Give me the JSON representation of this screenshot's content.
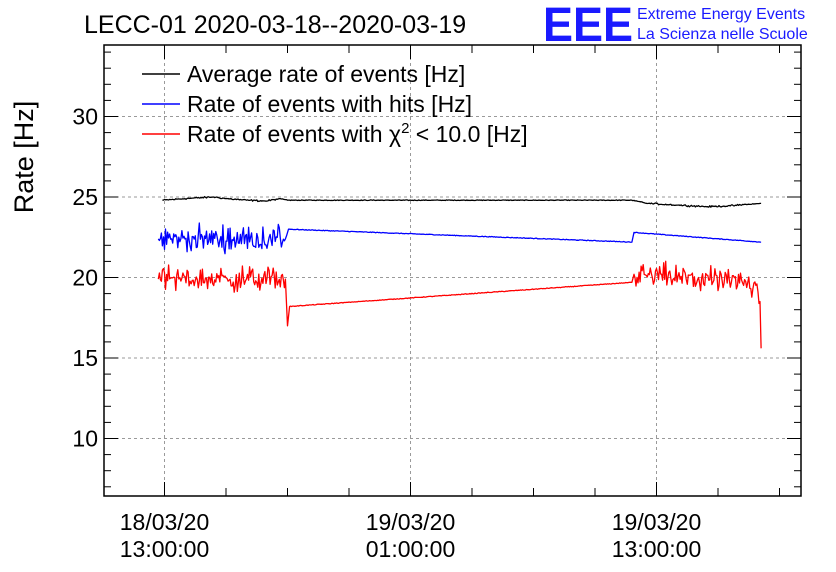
{
  "chart_data": {
    "type": "line",
    "title": "LECC-01 2020-03-18--2020-03-19",
    "ylabel": "Rate [Hz]",
    "xlabel": "",
    "ylim": [
      6.5,
      34.5
    ],
    "y_ticks": [
      10,
      15,
      20,
      25,
      30
    ],
    "x_unit": "hours after 18/03/20 13:00:00",
    "xlim": [
      -2.9,
      31.3
    ],
    "x_ticks": [
      {
        "x": 0,
        "date": "18/03/20",
        "time": "13:00:00"
      },
      {
        "x": 12,
        "date": "19/03/20",
        "time": "01:00:00"
      },
      {
        "x": 24,
        "date": "19/03/20",
        "time": "13:00:00"
      }
    ],
    "grid": true,
    "legend_position": "top-left",
    "series": [
      {
        "name": "Average rate of events [Hz]",
        "color": "#000000",
        "noise": 0.05,
        "points": [
          [
            -0.1,
            24.8
          ],
          [
            1,
            24.9
          ],
          [
            2.4,
            25.0
          ],
          [
            3,
            24.9
          ],
          [
            4,
            24.8
          ],
          [
            5,
            24.75
          ],
          [
            5.6,
            24.9
          ],
          [
            6,
            24.8
          ],
          [
            10,
            24.8
          ],
          [
            15,
            24.8
          ],
          [
            20,
            24.8
          ],
          [
            22.8,
            24.8
          ],
          [
            23.6,
            24.6
          ],
          [
            25,
            24.5
          ],
          [
            26.5,
            24.4
          ],
          [
            27.6,
            24.45
          ],
          [
            28.5,
            24.55
          ],
          [
            29.1,
            24.6
          ]
        ]
      },
      {
        "name": "Rate of events with hits [Hz]",
        "color": "#0000ff",
        "noise": 0.75,
        "points": [
          [
            -0.3,
            22.4
          ],
          [
            5.9,
            22.4
          ],
          [
            6.05,
            23.0
          ],
          [
            22.8,
            22.2
          ],
          [
            22.9,
            22.8
          ],
          [
            29.1,
            22.2
          ]
        ]
      },
      {
        "name": "Rate of events with χ² < 10.0 [Hz]",
        "name_main": "Rate of events with ",
        "name_chi": "χ",
        "name_sup": "2",
        "name_rest": " < 10.0 [Hz]",
        "color": "#ff0000",
        "noise": 0.75,
        "points": [
          [
            -0.3,
            19.9
          ],
          [
            5.9,
            19.9
          ],
          [
            6.0,
            17.0
          ],
          [
            6.1,
            18.2
          ],
          [
            22.8,
            19.7
          ],
          [
            22.9,
            20.2
          ],
          [
            28.9,
            19.6
          ],
          [
            29.05,
            18.5
          ],
          [
            29.1,
            15.6
          ]
        ]
      }
    ]
  },
  "logo": {
    "mark": "EEE",
    "line1": "Extreme Energy Events",
    "line2": "La Scienza nelle Scuole"
  }
}
